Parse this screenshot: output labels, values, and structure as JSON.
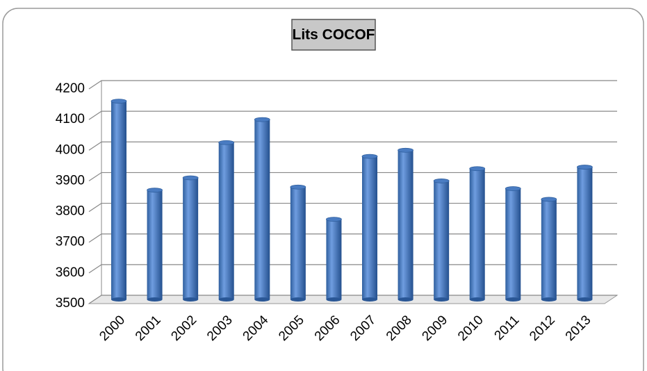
{
  "chart_data": {
    "type": "bar",
    "title": "Lits COCOF",
    "categories": [
      "2000",
      "2001",
      "2002",
      "2003",
      "2004",
      "2005",
      "2006",
      "2007",
      "2008",
      "2009",
      "2010",
      "2011",
      "2012",
      "2013"
    ],
    "values": [
      4160,
      3870,
      3910,
      4025,
      4100,
      3880,
      3775,
      3980,
      4000,
      3900,
      3940,
      3875,
      3840,
      3945
    ],
    "color": "#4a7cc2",
    "ylim": [
      3500,
      4200
    ],
    "yticks": [
      3500,
      3600,
      3700,
      3800,
      3900,
      4000,
      4100,
      4200
    ],
    "grid": true
  }
}
